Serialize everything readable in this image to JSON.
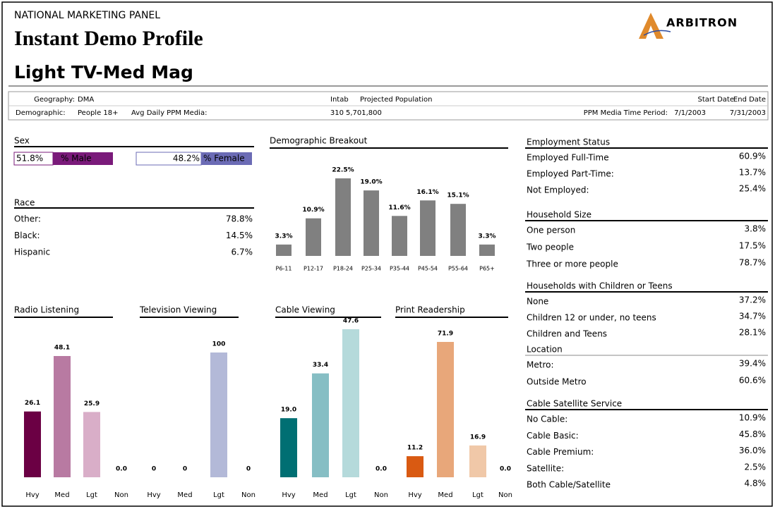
{
  "header": {
    "panel": "NATIONAL MARKETING PANEL",
    "title": "Instant Demo Profile",
    "subtitle": "Light TV-Med Mag",
    "logo": "ARBITRON"
  },
  "info": {
    "geography_label": "Geography:",
    "geography": "DMA",
    "demographic_label": "Demographic:",
    "demographic": "People 18+",
    "avg_label": "Avg Daily PPM Media:",
    "intab_label": "Intab",
    "projected_label": "Projected Population",
    "intab": "310",
    "projected": "5,701,800",
    "period_label": "PPM Media Time Period:",
    "start_label": "Start Date",
    "end_label": "End Date",
    "start": "7/1/2003",
    "end": "7/31/2003"
  },
  "sex": {
    "title": "Sex",
    "male_value": "51.8%",
    "male_label": "% Male",
    "female_value": "48.2%",
    "female_label": "% Female"
  },
  "race": {
    "title": "Race",
    "rows": [
      {
        "label": "Other:",
        "value": "78.8%"
      },
      {
        "label": "Black:",
        "value": "14.5%"
      },
      {
        "label": "Hispanic",
        "value": "6.7%"
      }
    ]
  },
  "sections": [
    {
      "title": "Employment Status",
      "rows": [
        {
          "label": "Employed Full-Time",
          "value": "60.9%"
        },
        {
          "label": "Employed Part-Time:",
          "value": "13.7%"
        },
        {
          "label": "Not Employed:",
          "value": "25.4%"
        }
      ]
    },
    {
      "title": "Household Size",
      "rows": [
        {
          "label": "One person",
          "value": "3.8%"
        },
        {
          "label": "Two people",
          "value": "17.5%"
        },
        {
          "label": "Three or more people",
          "value": "78.7%"
        }
      ]
    },
    {
      "title": "Households with Children or Teens",
      "rows": [
        {
          "label": "None",
          "value": "37.2%"
        },
        {
          "label": "Children 12 or under, no teens",
          "value": "34.7%"
        },
        {
          "label": "Children and Teens",
          "value": "28.1%"
        }
      ]
    },
    {
      "title": "Location",
      "rows": [
        {
          "label": "Metro:",
          "value": "39.4%"
        },
        {
          "label": "Outside Metro",
          "value": "60.6%"
        }
      ]
    },
    {
      "title": "Cable Satellite Service",
      "rows": [
        {
          "label": "No Cable:",
          "value": "10.9%"
        },
        {
          "label": "Cable Basic:",
          "value": "45.8%"
        },
        {
          "label": "Cable Premium:",
          "value": "36.0%"
        },
        {
          "label": "Satellite:",
          "value": "2.5%"
        },
        {
          "label": "Both Cable/Satellite",
          "value": "4.8%"
        }
      ]
    }
  ],
  "chart_data": [
    {
      "type": "bar",
      "title": "Demographic Breakout",
      "categories": [
        "P6-11",
        "P12-17",
        "P18-24",
        "P25-34",
        "P35-44",
        "P45-54",
        "P55-64",
        "P65+"
      ],
      "values": [
        3.3,
        10.9,
        22.5,
        19.0,
        11.6,
        16.1,
        15.1,
        3.3
      ],
      "value_labels": [
        "3.3%",
        "10.9%",
        "22.5%",
        "19.0%",
        "11.6%",
        "16.1%",
        "15.1%",
        "3.3%"
      ],
      "colors": [
        "#808080",
        "#808080",
        "#808080",
        "#808080",
        "#808080",
        "#808080",
        "#808080",
        "#808080"
      ]
    },
    {
      "type": "bar",
      "title": "Radio Listening",
      "categories": [
        "Hvy",
        "Med",
        "Lgt",
        "Non"
      ],
      "values": [
        26.1,
        48.1,
        25.9,
        0.0
      ],
      "value_labels": [
        "26.1",
        "48.1",
        "25.9",
        "0.0"
      ],
      "colors": [
        "#6b0044",
        "#b87aa2",
        "#d9aec8",
        "#d9aec8"
      ]
    },
    {
      "type": "bar",
      "title": "Television Viewing",
      "categories": [
        "Hvy",
        "Med",
        "Lgt",
        "Non"
      ],
      "values": [
        0,
        0,
        100,
        0
      ],
      "colors": [
        "#b3b9d8",
        "#b3b9d8",
        "#b3b9d8",
        "#b3b9d8"
      ]
    },
    {
      "type": "bar",
      "title": "Cable Viewing",
      "categories": [
        "Hvy",
        "Med",
        "Lgt",
        "Non"
      ],
      "values": [
        19.0,
        33.4,
        47.6,
        0.0
      ],
      "value_labels": [
        "19.0",
        "33.4",
        "47.6",
        "0.0"
      ],
      "colors": [
        "#006f73",
        "#86bec4",
        "#b5dadb",
        "#b5dadb"
      ]
    },
    {
      "type": "bar",
      "title": "Print Readership",
      "categories": [
        "Hvy",
        "Med",
        "Lgt",
        "Non"
      ],
      "values": [
        11.2,
        71.9,
        16.9,
        0.0
      ],
      "value_labels": [
        "11.2",
        "71.9",
        "16.9",
        "0.0"
      ],
      "colors": [
        "#d95a12",
        "#e8a77a",
        "#f0c8a8",
        "#f0c8a8"
      ]
    }
  ]
}
